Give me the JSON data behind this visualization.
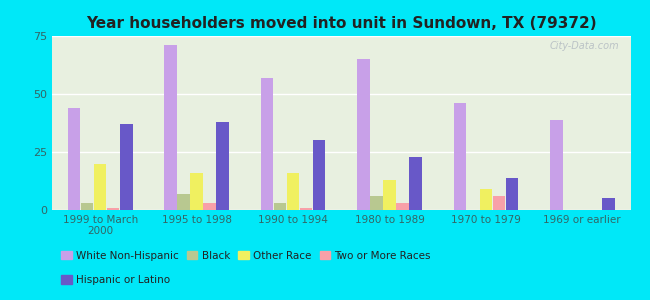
{
  "title": "Year householders moved into unit in Sundown, TX (79372)",
  "categories": [
    "1999 to March\n2000",
    "1995 to 1998",
    "1990 to 1994",
    "1980 to 1989",
    "1970 to 1979",
    "1969 or earlier"
  ],
  "series": {
    "White Non-Hispanic": [
      44,
      71,
      57,
      65,
      46,
      39
    ],
    "Black": [
      3,
      7,
      3,
      6,
      0,
      0
    ],
    "Other Race": [
      20,
      16,
      16,
      13,
      9,
      0
    ],
    "Two or More Races": [
      1,
      3,
      1,
      3,
      6,
      0
    ],
    "Hispanic or Latino": [
      37,
      38,
      30,
      23,
      14,
      5
    ]
  },
  "colors": {
    "White Non-Hispanic": "#c8a0e8",
    "Black": "#b8c890",
    "Other Race": "#f0f060",
    "Two or More Races": "#f8a0a8",
    "Hispanic or Latino": "#6858c8"
  },
  "background_outer": "#00e8f8",
  "background_inner_top": "#e8f0e0",
  "background_inner_bottom": "#d0e8e8",
  "ylim": [
    0,
    75
  ],
  "yticks": [
    0,
    25,
    50,
    75
  ],
  "watermark": "City-Data.com",
  "legend_order": [
    "White Non-Hispanic",
    "Black",
    "Other Race",
    "Two or More Races",
    "Hispanic or Latino"
  ]
}
